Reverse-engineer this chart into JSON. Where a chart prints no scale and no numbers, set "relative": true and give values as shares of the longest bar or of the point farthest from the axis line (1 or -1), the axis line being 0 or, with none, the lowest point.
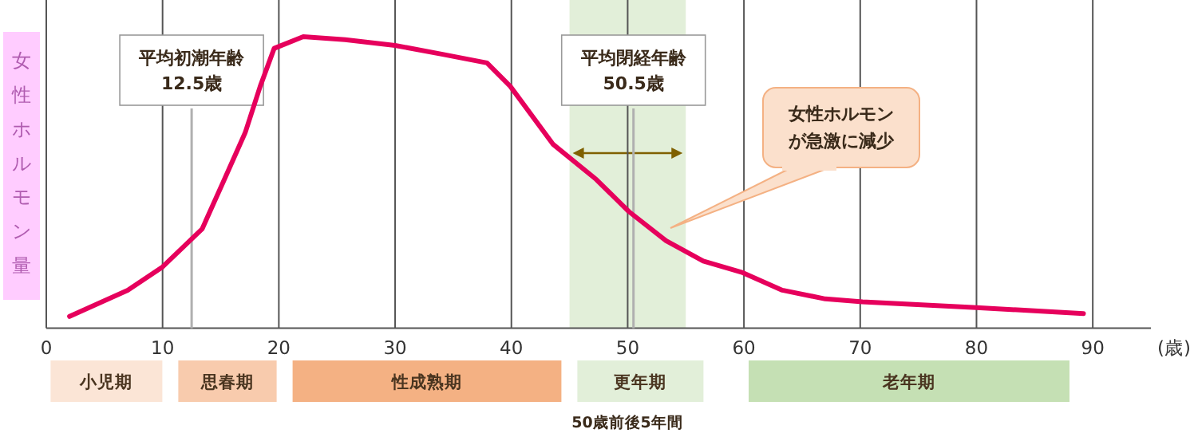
{
  "chart_data": {
    "type": "line",
    "relative": true,
    "ylabel": "女性ホルモン量",
    "xlabel": "(歳)",
    "xlim": [
      0,
      95
    ],
    "xticks": [
      0,
      10,
      20,
      30,
      40,
      50,
      60,
      70,
      80,
      90
    ],
    "grid": "x",
    "x": [
      2.0,
      7.0,
      10.0,
      13.4,
      15.2,
      17.1,
      18.4,
      19.6,
      22.1,
      25.7,
      30.0,
      34.0,
      37.9,
      39.9,
      43.6,
      47.3,
      50.1,
      53.3,
      56.5,
      59.9,
      63.3,
      67.0,
      70.2,
      80.0,
      89.2
    ],
    "series": [
      {
        "color": "#e6005c",
        "values": [
          0.04,
          0.13,
          0.21,
          0.34,
          0.5,
          0.67,
          0.83,
          0.96,
          1.0,
          0.99,
          0.97,
          0.94,
          0.91,
          0.83,
          0.63,
          0.51,
          0.4,
          0.3,
          0.23,
          0.19,
          0.13,
          0.1,
          0.09,
          0.07,
          0.05
        ]
      }
    ],
    "ref_lines": [
      {
        "axis": "x",
        "value": 12.5,
        "label": "平均初潮年齢\n12.5歳",
        "color": "#b0b0b0"
      },
      {
        "axis": "x",
        "value": 50.5,
        "label": "平均閉経年齢\n50.5歳",
        "color": "#b0b0b0"
      }
    ],
    "bands": [
      {
        "axis": "x",
        "from": 45,
        "to": 55,
        "color": "#e2efd9"
      }
    ],
    "annotations": [
      "女性ホルモンが急激に減少",
      "小児期",
      "思春期",
      "性成熟期",
      "更年期",
      "老年期",
      "50歳前後5年間"
    ]
  }
}
